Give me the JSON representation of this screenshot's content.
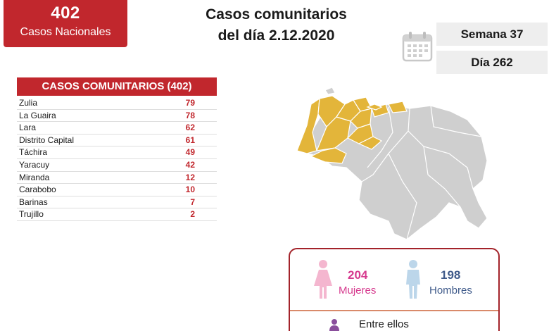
{
  "national": {
    "count": "402",
    "label": "Casos Nacionales"
  },
  "title": {
    "line1": "Casos comunitarios",
    "line2": "del día 2.12.2020"
  },
  "week_label": "Semana 37",
  "day_label": "Día 262",
  "table": {
    "header": "CASOS COMUNITARIOS (402)",
    "rows": [
      {
        "state": "Zulia",
        "cases": "79"
      },
      {
        "state": "La Guaira",
        "cases": "78"
      },
      {
        "state": "Lara",
        "cases": "62"
      },
      {
        "state": "Distrito Capital",
        "cases": "61"
      },
      {
        "state": "Táchira",
        "cases": "49"
      },
      {
        "state": "Yaracuy",
        "cases": "42"
      },
      {
        "state": "Miranda",
        "cases": "12"
      },
      {
        "state": "Carabobo",
        "cases": "10"
      },
      {
        "state": "Barinas",
        "cases": "7"
      },
      {
        "state": "Trujillo",
        "cases": "2"
      }
    ]
  },
  "gender": {
    "women": {
      "count": "204",
      "label": "Mujeres",
      "color": "#d63a8e"
    },
    "men": {
      "count": "198",
      "label": "Hombres",
      "color": "#3f5a8a"
    }
  },
  "among": "Entre ellos",
  "colors": {
    "brand_red": "#c1272d",
    "map_highlight": "#e3b53a",
    "map_base": "#cfcfcf"
  },
  "icons": [
    "calendar-icon",
    "female-icon",
    "male-icon",
    "person-icon"
  ]
}
